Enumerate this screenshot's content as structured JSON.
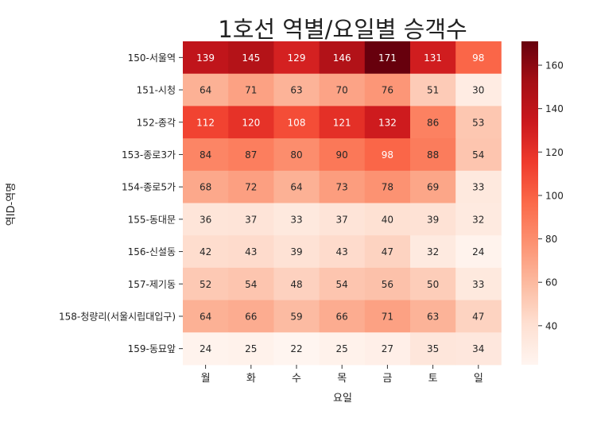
{
  "chart_data": {
    "type": "heatmap",
    "title": "1호선 역별/요일별 승객수",
    "xlabel": "요일",
    "ylabel": "역ID-역명",
    "x_categories": [
      "월",
      "화",
      "수",
      "목",
      "금",
      "토",
      "일"
    ],
    "y_categories": [
      "150-서울역",
      "151-시청",
      "152-종각",
      "153-종로3가",
      "154-종로5가",
      "155-동대문",
      "156-신설동",
      "157-제기동",
      "158-청량리(서울시립대입구)",
      "159-동묘앞"
    ],
    "values": [
      [
        139,
        145,
        129,
        146,
        171,
        131,
        98
      ],
      [
        64,
        71,
        63,
        70,
        76,
        51,
        30
      ],
      [
        112,
        120,
        108,
        121,
        132,
        86,
        53
      ],
      [
        84,
        87,
        80,
        90,
        98,
        88,
        54
      ],
      [
        68,
        72,
        64,
        73,
        78,
        69,
        33
      ],
      [
        36,
        37,
        33,
        37,
        40,
        39,
        32
      ],
      [
        42,
        43,
        39,
        43,
        47,
        32,
        24
      ],
      [
        52,
        54,
        48,
        54,
        56,
        50,
        33
      ],
      [
        64,
        66,
        59,
        66,
        71,
        63,
        47
      ],
      [
        24,
        25,
        22,
        25,
        27,
        35,
        34
      ]
    ],
    "colorbar": {
      "ticks": [
        40,
        60,
        80,
        100,
        120,
        140,
        160
      ],
      "range": [
        22,
        171
      ],
      "colormap": "Reds"
    },
    "colors": {
      "low": "#fff5f0",
      "high": "#67000d"
    }
  }
}
